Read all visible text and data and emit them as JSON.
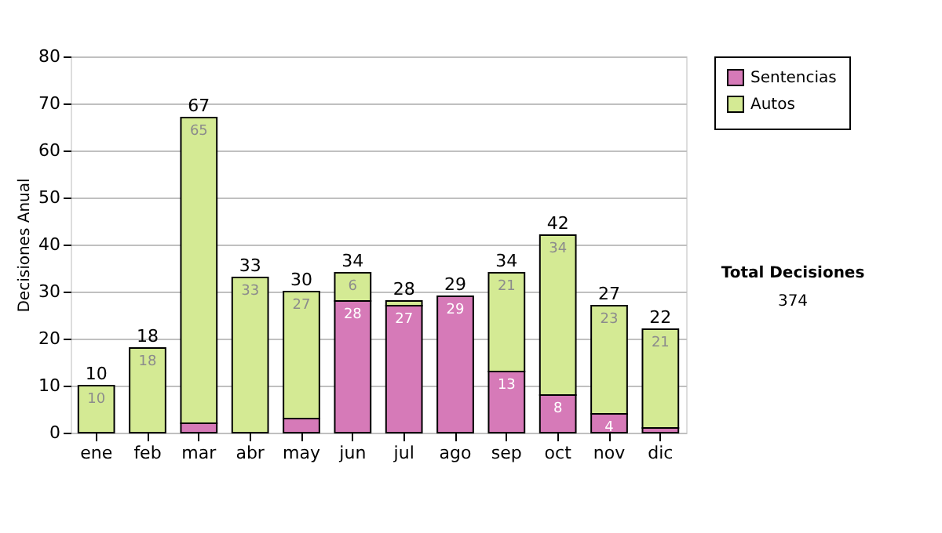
{
  "chart_data": {
    "type": "bar",
    "stacked": true,
    "ylabel": "Decisiones Anual",
    "categories": [
      "ene",
      "feb",
      "mar",
      "abr",
      "may",
      "jun",
      "jul",
      "ago",
      "sep",
      "oct",
      "nov",
      "dic"
    ],
    "series": [
      {
        "name": "Sentencias",
        "color": "#d67ab8",
        "values": [
          0,
          0,
          2,
          0,
          3,
          28,
          27,
          29,
          13,
          8,
          4,
          1
        ],
        "value_labels": [
          null,
          null,
          null,
          null,
          null,
          "28",
          "27",
          "29",
          "13",
          "8",
          "4",
          null
        ]
      },
      {
        "name": "Autos",
        "color": "#d4ea94",
        "values": [
          10,
          18,
          65,
          33,
          27,
          6,
          1,
          0,
          21,
          34,
          23,
          21
        ],
        "value_labels": [
          "10",
          "18",
          "65",
          "33",
          "27",
          "6",
          null,
          null,
          "21",
          "34",
          "23",
          "21"
        ]
      }
    ],
    "totals": [
      "10",
      "18",
      "67",
      "33",
      "30",
      "34",
      "28",
      "29",
      "34",
      "42",
      "27",
      "22"
    ],
    "ylim": [
      0,
      80
    ],
    "yticks": [
      0,
      10,
      20,
      30,
      40,
      50,
      60,
      70,
      80
    ],
    "grid": "y",
    "legend": "right",
    "annotations": [
      "Total Decisiones",
      "374"
    ]
  }
}
